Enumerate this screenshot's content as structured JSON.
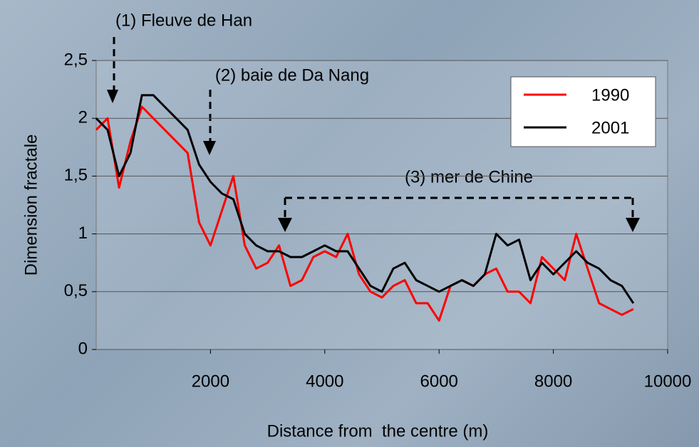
{
  "chart_data": {
    "type": "line",
    "y_label": "Dimension fractale",
    "x_label": "Distance from  the centre (m)",
    "annotations": [
      "(1) Fleuve de Han",
      "(2) baie de Da Nang",
      "(3) mer de Chine"
    ],
    "x": [
      0,
      200,
      400,
      600,
      800,
      1000,
      1200,
      1400,
      1600,
      1800,
      2000,
      2200,
      2400,
      2600,
      2800,
      3000,
      3200,
      3400,
      3600,
      3800,
      4000,
      4200,
      4400,
      4600,
      4800,
      5000,
      5200,
      5400,
      5600,
      5800,
      6000,
      6200,
      6400,
      6600,
      6800,
      7000,
      7200,
      7400,
      7600,
      7800,
      8000,
      8200,
      8400,
      8600,
      8800,
      9000,
      9200,
      9400
    ],
    "series": [
      {
        "name": "1990",
        "color": "#ff0000",
        "values": [
          1.9,
          2.0,
          1.4,
          1.8,
          2.1,
          2.0,
          1.9,
          1.8,
          1.7,
          1.1,
          0.9,
          1.2,
          1.5,
          0.9,
          0.7,
          0.75,
          0.9,
          0.55,
          0.6,
          0.8,
          0.85,
          0.8,
          1.0,
          0.65,
          0.5,
          0.45,
          0.55,
          0.6,
          0.4,
          0.4,
          0.25,
          0.55,
          0.6,
          0.55,
          0.65,
          0.7,
          0.5,
          0.5,
          0.4,
          0.8,
          0.7,
          0.6,
          1.0,
          0.7,
          0.4,
          0.35,
          0.3,
          0.35
        ]
      },
      {
        "name": "2001",
        "color": "#000000",
        "values": [
          2.0,
          1.9,
          1.5,
          1.7,
          2.2,
          2.2,
          2.1,
          2.0,
          1.9,
          1.6,
          1.45,
          1.35,
          1.3,
          1.0,
          0.9,
          0.85,
          0.85,
          0.8,
          0.8,
          0.85,
          0.9,
          0.85,
          0.85,
          0.7,
          0.55,
          0.5,
          0.7,
          0.75,
          0.6,
          0.55,
          0.5,
          0.55,
          0.6,
          0.55,
          0.65,
          1.0,
          0.9,
          0.95,
          0.6,
          0.75,
          0.65,
          0.75,
          0.85,
          0.75,
          0.7,
          0.6,
          0.55,
          0.4
        ]
      }
    ],
    "xlim": [
      0,
      10000
    ],
    "xticks": [
      2000,
      4000,
      6000,
      8000,
      10000
    ],
    "ylim": [
      0,
      2.5
    ],
    "yticks": [
      0,
      {
        "value": 0.5,
        "label": "0,5"
      },
      1,
      {
        "value": 1.5,
        "label": "1,5"
      },
      2,
      {
        "value": 2.5,
        "label": "2,5"
      }
    ],
    "grid": true,
    "legend": "upper right"
  }
}
